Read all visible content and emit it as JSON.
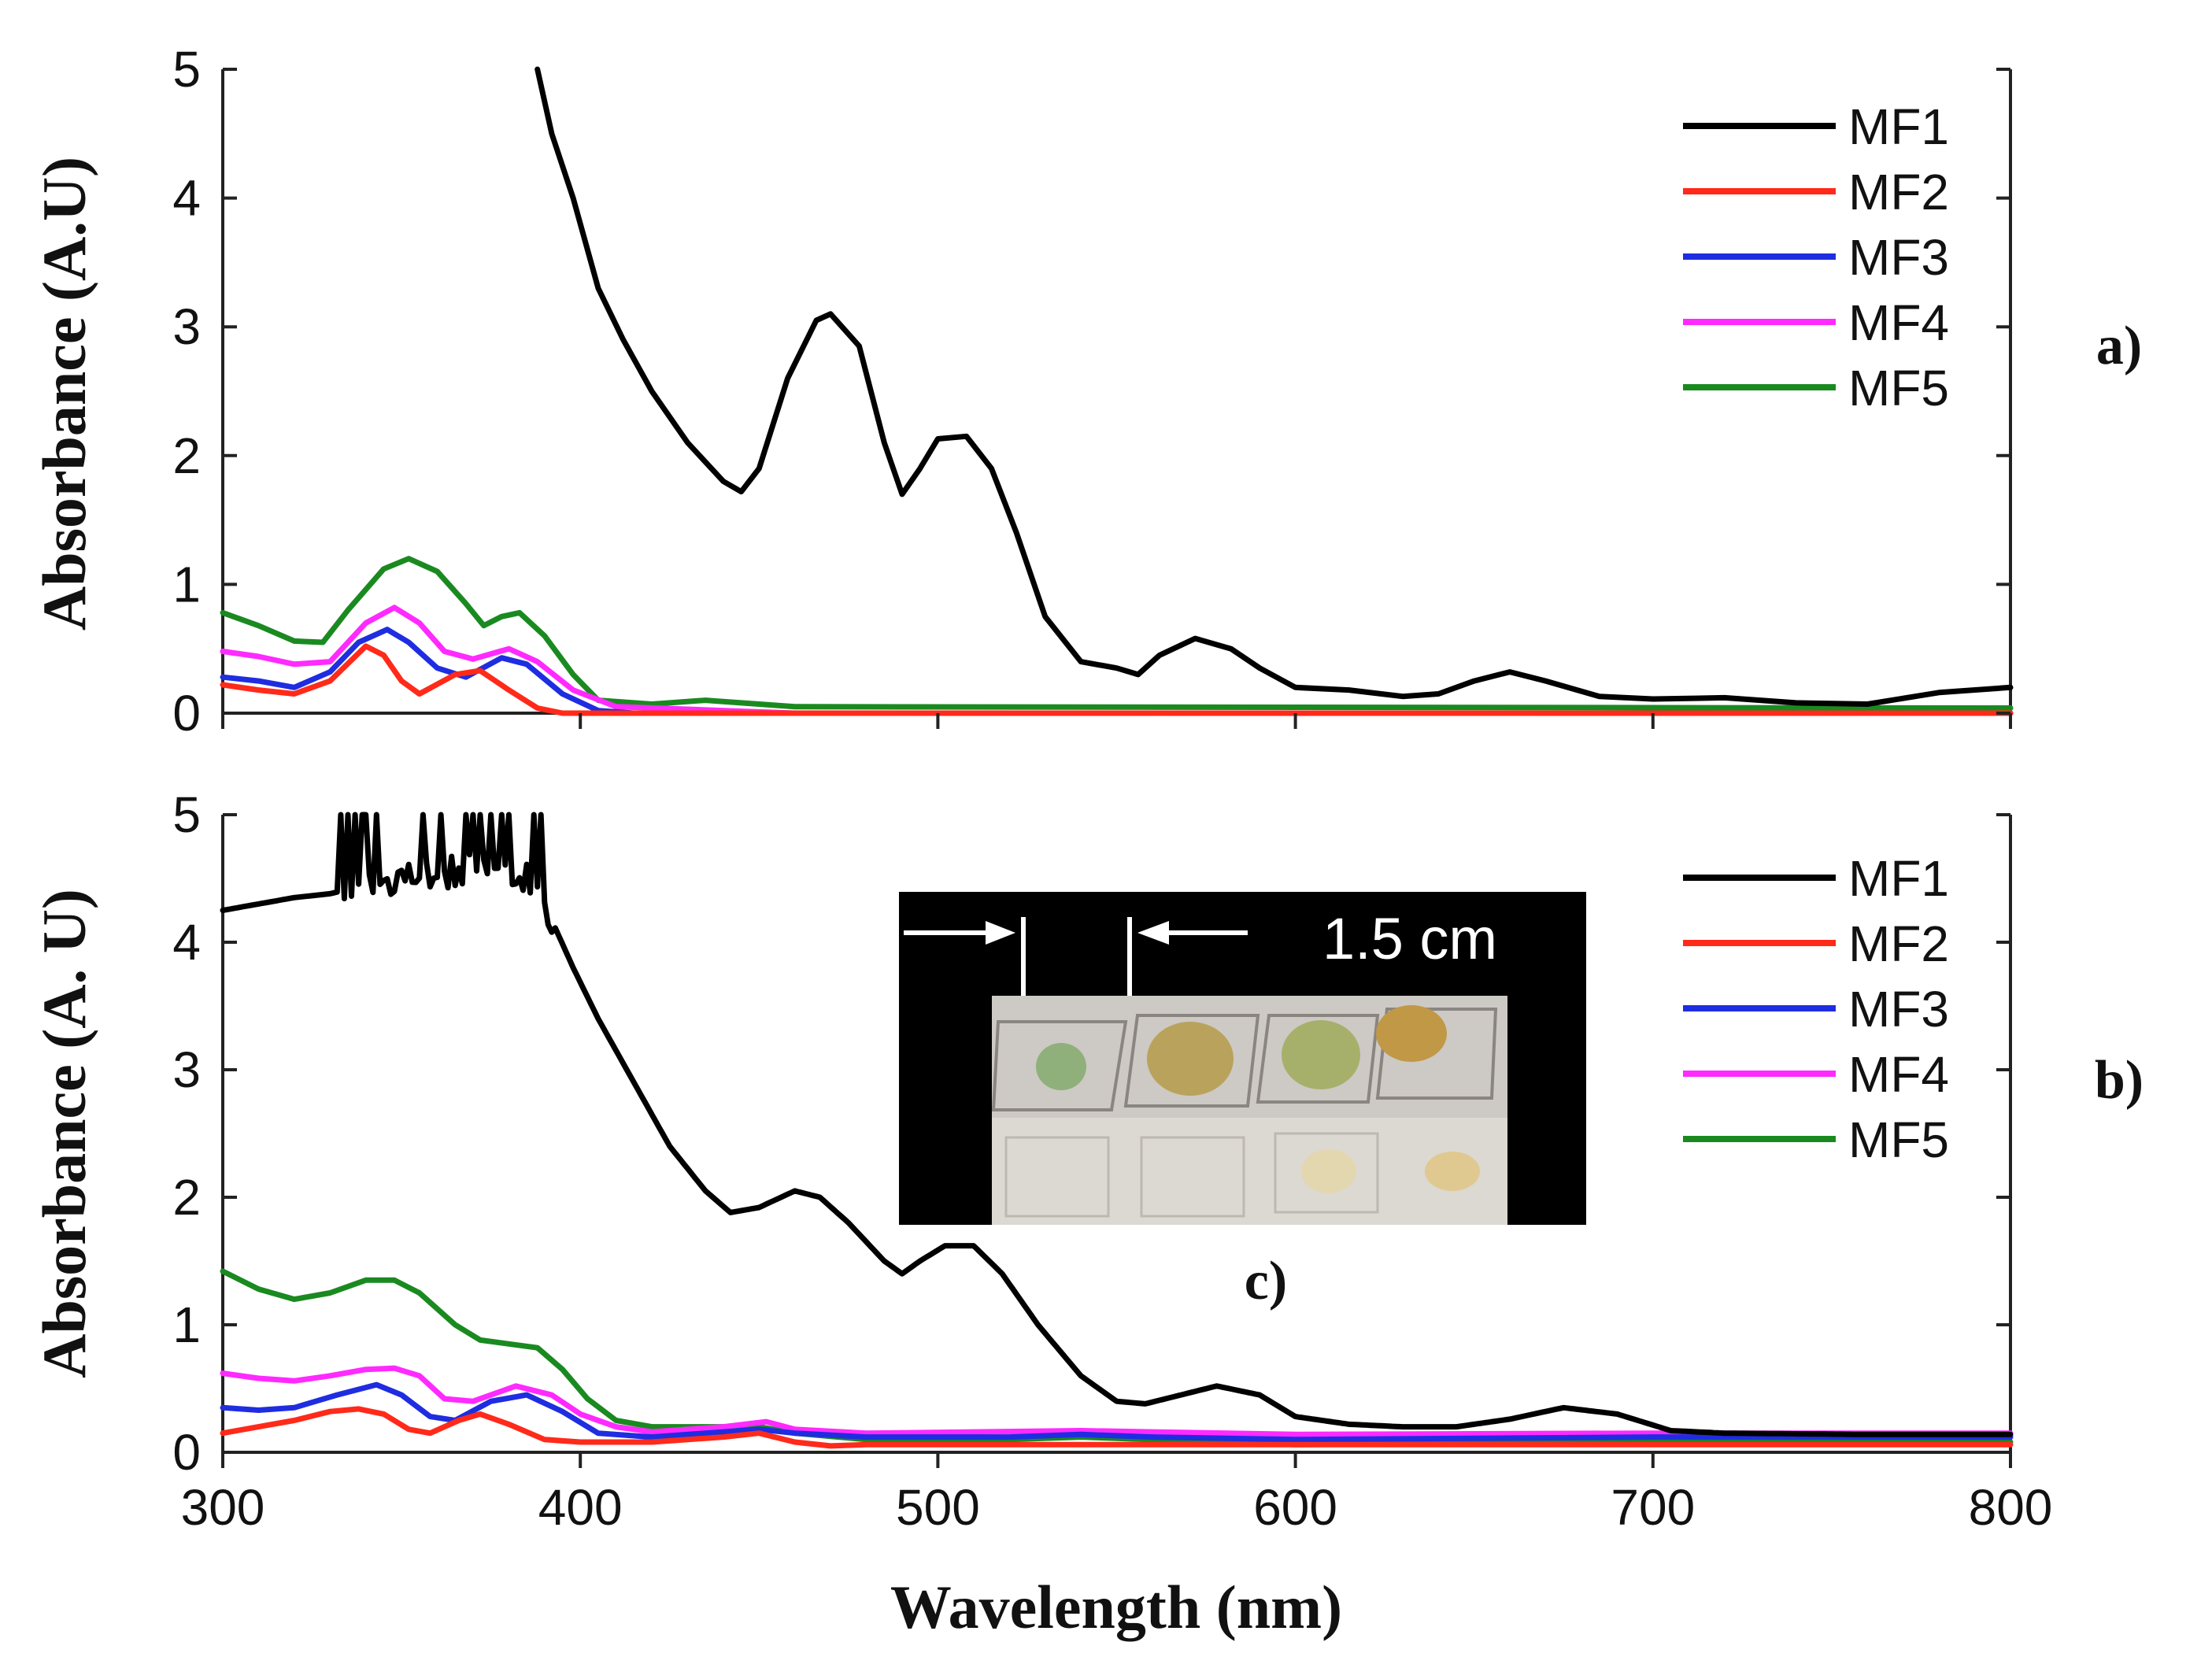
{
  "figure": {
    "x_label": "Wavelength (nm)",
    "x_ticks": [
      "300",
      "400",
      "500",
      "600",
      "700",
      "800"
    ],
    "y_ticks": [
      "0",
      "1",
      "2",
      "3",
      "4",
      "5"
    ]
  },
  "chart_data": [
    {
      "type": "line",
      "panel_label": "a)",
      "ylabel": "Absorbance (A.U)",
      "xlim": [
        300,
        800
      ],
      "ylim": [
        0,
        5
      ],
      "legend_position": "top-right",
      "series": [
        {
          "name": "MF1",
          "color": "#000000",
          "points": [
            [
              388,
              5.0
            ],
            [
              392,
              4.5
            ],
            [
              398,
              4.0
            ],
            [
              405,
              3.3
            ],
            [
              412,
              2.9
            ],
            [
              420,
              2.5
            ],
            [
              430,
              2.1
            ],
            [
              440,
              1.8
            ],
            [
              445,
              1.72
            ],
            [
              450,
              1.9
            ],
            [
              458,
              2.6
            ],
            [
              466,
              3.05
            ],
            [
              470,
              3.1
            ],
            [
              478,
              2.85
            ],
            [
              485,
              2.1
            ],
            [
              490,
              1.7
            ],
            [
              495,
              1.9
            ],
            [
              500,
              2.13
            ],
            [
              508,
              2.15
            ],
            [
              515,
              1.9
            ],
            [
              522,
              1.4
            ],
            [
              530,
              0.75
            ],
            [
              540,
              0.4
            ],
            [
              550,
              0.35
            ],
            [
              556,
              0.3
            ],
            [
              562,
              0.45
            ],
            [
              572,
              0.58
            ],
            [
              582,
              0.5
            ],
            [
              590,
              0.35
            ],
            [
              600,
              0.2
            ],
            [
              615,
              0.18
            ],
            [
              630,
              0.13
            ],
            [
              640,
              0.15
            ],
            [
              650,
              0.25
            ],
            [
              660,
              0.32
            ],
            [
              670,
              0.25
            ],
            [
              685,
              0.13
            ],
            [
              700,
              0.11
            ],
            [
              720,
              0.12
            ],
            [
              740,
              0.08
            ],
            [
              760,
              0.07
            ],
            [
              780,
              0.16
            ],
            [
              800,
              0.2
            ]
          ]
        },
        {
          "name": "MF2",
          "color": "#ff2a1a",
          "points": [
            [
              300,
              0.22
            ],
            [
              310,
              0.18
            ],
            [
              320,
              0.15
            ],
            [
              330,
              0.25
            ],
            [
              340,
              0.52
            ],
            [
              345,
              0.45
            ],
            [
              350,
              0.25
            ],
            [
              355,
              0.15
            ],
            [
              365,
              0.3
            ],
            [
              372,
              0.33
            ],
            [
              380,
              0.18
            ],
            [
              388,
              0.04
            ],
            [
              395,
              0.0
            ],
            [
              800,
              0.0
            ]
          ]
        },
        {
          "name": "MF3",
          "color": "#1f2de0",
          "points": [
            [
              300,
              0.28
            ],
            [
              310,
              0.25
            ],
            [
              320,
              0.2
            ],
            [
              330,
              0.32
            ],
            [
              338,
              0.55
            ],
            [
              346,
              0.65
            ],
            [
              352,
              0.55
            ],
            [
              360,
              0.35
            ],
            [
              368,
              0.28
            ],
            [
              378,
              0.43
            ],
            [
              385,
              0.38
            ],
            [
              395,
              0.15
            ],
            [
              405,
              0.02
            ],
            [
              415,
              0.0
            ],
            [
              800,
              0.0
            ]
          ]
        },
        {
          "name": "MF4",
          "color": "#ff2aff",
          "points": [
            [
              300,
              0.48
            ],
            [
              310,
              0.44
            ],
            [
              320,
              0.38
            ],
            [
              330,
              0.4
            ],
            [
              340,
              0.7
            ],
            [
              348,
              0.82
            ],
            [
              355,
              0.7
            ],
            [
              362,
              0.48
            ],
            [
              370,
              0.42
            ],
            [
              380,
              0.5
            ],
            [
              388,
              0.4
            ],
            [
              398,
              0.18
            ],
            [
              410,
              0.05
            ],
            [
              440,
              0.02
            ],
            [
              460,
              0.0
            ],
            [
              800,
              0.0
            ]
          ]
        },
        {
          "name": "MF5",
          "color": "#1a8a20",
          "points": [
            [
              300,
              0.78
            ],
            [
              310,
              0.68
            ],
            [
              320,
              0.56
            ],
            [
              328,
              0.55
            ],
            [
              335,
              0.8
            ],
            [
              345,
              1.12
            ],
            [
              352,
              1.2
            ],
            [
              360,
              1.1
            ],
            [
              368,
              0.85
            ],
            [
              373,
              0.68
            ],
            [
              378,
              0.75
            ],
            [
              383,
              0.78
            ],
            [
              390,
              0.6
            ],
            [
              398,
              0.3
            ],
            [
              405,
              0.1
            ],
            [
              420,
              0.07
            ],
            [
              435,
              0.1
            ],
            [
              445,
              0.08
            ],
            [
              460,
              0.05
            ],
            [
              800,
              0.04
            ]
          ]
        }
      ]
    },
    {
      "type": "line",
      "panel_label": "b)",
      "ylabel": "Absorbance (A. U)",
      "xlim": [
        300,
        800
      ],
      "ylim": [
        0,
        5
      ],
      "legend_position": "top-right",
      "inset": {
        "label": "c)",
        "scale_text": "1.5 cm"
      },
      "series": [
        {
          "name": "MF1",
          "color": "#000000",
          "noise_range": [
            333,
            392
          ],
          "points": [
            [
              300,
              4.25
            ],
            [
              310,
              4.3
            ],
            [
              320,
              4.35
            ],
            [
              330,
              4.38
            ],
            [
              340,
              4.45
            ],
            [
              350,
              4.5
            ],
            [
              360,
              4.55
            ],
            [
              370,
              4.6
            ],
            [
              382,
              4.62
            ],
            [
              390,
              4.3
            ],
            [
              398,
              3.8
            ],
            [
              405,
              3.4
            ],
            [
              415,
              2.9
            ],
            [
              425,
              2.4
            ],
            [
              435,
              2.05
            ],
            [
              442,
              1.88
            ],
            [
              450,
              1.92
            ],
            [
              460,
              2.05
            ],
            [
              467,
              2.0
            ],
            [
              475,
              1.8
            ],
            [
              485,
              1.5
            ],
            [
              490,
              1.4
            ],
            [
              495,
              1.5
            ],
            [
              502,
              1.62
            ],
            [
              510,
              1.62
            ],
            [
              518,
              1.4
            ],
            [
              528,
              1.0
            ],
            [
              540,
              0.6
            ],
            [
              550,
              0.4
            ],
            [
              558,
              0.38
            ],
            [
              568,
              0.45
            ],
            [
              578,
              0.52
            ],
            [
              590,
              0.45
            ],
            [
              600,
              0.28
            ],
            [
              615,
              0.22
            ],
            [
              630,
              0.2
            ],
            [
              645,
              0.2
            ],
            [
              660,
              0.26
            ],
            [
              675,
              0.35
            ],
            [
              690,
              0.3
            ],
            [
              705,
              0.17
            ],
            [
              720,
              0.15
            ],
            [
              760,
              0.14
            ],
            [
              800,
              0.14
            ]
          ]
        },
        {
          "name": "MF2",
          "color": "#ff2a1a",
          "points": [
            [
              300,
              0.15
            ],
            [
              310,
              0.2
            ],
            [
              320,
              0.25
            ],
            [
              330,
              0.32
            ],
            [
              338,
              0.34
            ],
            [
              345,
              0.3
            ],
            [
              352,
              0.18
            ],
            [
              358,
              0.15
            ],
            [
              366,
              0.25
            ],
            [
              372,
              0.3
            ],
            [
              380,
              0.22
            ],
            [
              390,
              0.1
            ],
            [
              400,
              0.08
            ],
            [
              420,
              0.08
            ],
            [
              440,
              0.12
            ],
            [
              450,
              0.15
            ],
            [
              460,
              0.08
            ],
            [
              470,
              0.05
            ],
            [
              480,
              0.06
            ],
            [
              800,
              0.06
            ]
          ]
        },
        {
          "name": "MF3",
          "color": "#1f2de0",
          "points": [
            [
              300,
              0.35
            ],
            [
              310,
              0.33
            ],
            [
              320,
              0.35
            ],
            [
              332,
              0.45
            ],
            [
              343,
              0.53
            ],
            [
              350,
              0.45
            ],
            [
              358,
              0.28
            ],
            [
              365,
              0.25
            ],
            [
              375,
              0.4
            ],
            [
              385,
              0.45
            ],
            [
              395,
              0.32
            ],
            [
              405,
              0.15
            ],
            [
              420,
              0.12
            ],
            [
              440,
              0.16
            ],
            [
              450,
              0.18
            ],
            [
              460,
              0.15
            ],
            [
              480,
              0.12
            ],
            [
              520,
              0.12
            ],
            [
              540,
              0.14
            ],
            [
              560,
              0.12
            ],
            [
              600,
              0.1
            ],
            [
              700,
              0.12
            ],
            [
              800,
              0.12
            ]
          ]
        },
        {
          "name": "MF4",
          "color": "#ff2aff",
          "points": [
            [
              300,
              0.62
            ],
            [
              310,
              0.58
            ],
            [
              320,
              0.56
            ],
            [
              330,
              0.6
            ],
            [
              340,
              0.65
            ],
            [
              348,
              0.66
            ],
            [
              355,
              0.6
            ],
            [
              362,
              0.42
            ],
            [
              370,
              0.4
            ],
            [
              382,
              0.52
            ],
            [
              392,
              0.45
            ],
            [
              400,
              0.3
            ],
            [
              410,
              0.2
            ],
            [
              420,
              0.16
            ],
            [
              440,
              0.2
            ],
            [
              452,
              0.24
            ],
            [
              460,
              0.18
            ],
            [
              480,
              0.15
            ],
            [
              540,
              0.17
            ],
            [
              560,
              0.16
            ],
            [
              600,
              0.14
            ],
            [
              700,
              0.15
            ],
            [
              800,
              0.15
            ]
          ]
        },
        {
          "name": "MF5",
          "color": "#1a8a20",
          "points": [
            [
              300,
              1.42
            ],
            [
              310,
              1.28
            ],
            [
              320,
              1.2
            ],
            [
              330,
              1.25
            ],
            [
              340,
              1.35
            ],
            [
              348,
              1.35
            ],
            [
              355,
              1.25
            ],
            [
              365,
              1.0
            ],
            [
              372,
              0.88
            ],
            [
              380,
              0.85
            ],
            [
              388,
              0.82
            ],
            [
              395,
              0.65
            ],
            [
              402,
              0.42
            ],
            [
              410,
              0.25
            ],
            [
              420,
              0.2
            ],
            [
              440,
              0.2
            ],
            [
              450,
              0.2
            ],
            [
              460,
              0.15
            ],
            [
              480,
              0.1
            ],
            [
              520,
              0.1
            ],
            [
              540,
              0.12
            ],
            [
              600,
              0.06
            ],
            [
              700,
              0.08
            ],
            [
              800,
              0.08
            ]
          ]
        }
      ]
    }
  ]
}
